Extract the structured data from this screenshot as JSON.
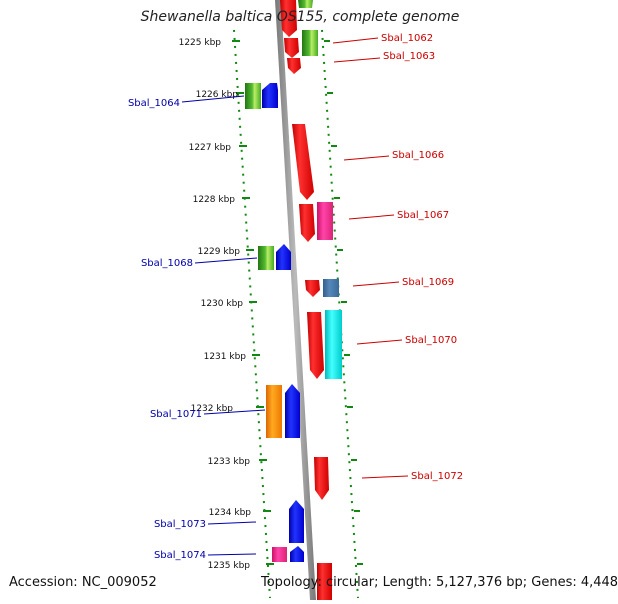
{
  "title": "Shewanella baltica OS155, complete genome",
  "accession": "Accession: NC_009052",
  "summary": "Topology: circular; Length: 5,127,376 bp; Genes: 4,448",
  "colors": {
    "red": "#ff0000",
    "green": "#33aa22",
    "blue": "#0000ee",
    "magenta": "#ee2288",
    "steelblue": "#4477aa",
    "cyan": "#00e5e5",
    "orange": "#ff8800",
    "tick": "#118811",
    "backbone": "#888888",
    "label_red": "#cc0000",
    "label_blue": "#0000aa"
  },
  "ticks": [
    "1225 kbp",
    "1226 kbp",
    "1227 kbp",
    "1228 kbp",
    "1229 kbp",
    "1230 kbp",
    "1231 kbp",
    "1232 kbp",
    "1233 kbp",
    "1234 kbp",
    "1235 kbp"
  ],
  "gene_labels": [
    {
      "text": "Sbal_1062",
      "side": "right"
    },
    {
      "text": "Sbal_1063",
      "side": "right"
    },
    {
      "text": "Sbal_1064",
      "side": "left"
    },
    {
      "text": "Sbal_1066",
      "side": "right"
    },
    {
      "text": "Sbal_1067",
      "side": "right"
    },
    {
      "text": "Sbal_1068",
      "side": "left"
    },
    {
      "text": "Sbal_1069",
      "side": "right"
    },
    {
      "text": "Sbal_1070",
      "side": "right"
    },
    {
      "text": "Sbal_1071",
      "side": "left"
    },
    {
      "text": "Sbal_1072",
      "side": "right"
    },
    {
      "text": "Sbal_1073",
      "side": "left"
    },
    {
      "text": "Sbal_1074",
      "side": "left"
    }
  ]
}
